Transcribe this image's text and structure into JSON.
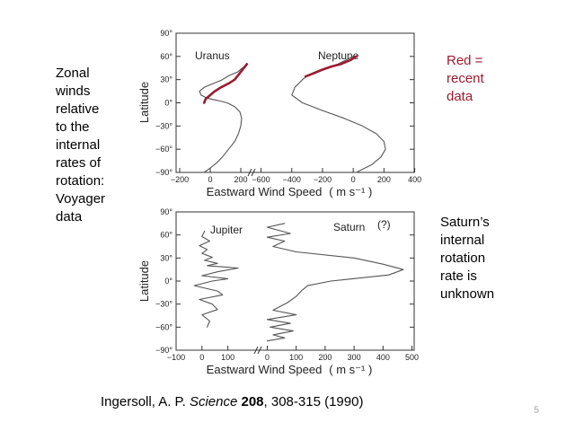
{
  "slide": {
    "left_caption": "Zonal\nwinds\nrelative\nto the\ninternal\nrates of\nrotation:\nVoyager\ndata",
    "red_note": "Red =\nrecent\ndata",
    "saturn_note": "Saturn’s\ninternal\nrotation\nrate is\nunknown",
    "citation": {
      "authors": "Ingersoll, A. P. ",
      "journal": "Science",
      "volume": "208",
      "pages": ", 308-315 (1990)"
    },
    "page_number": "5"
  },
  "colors": {
    "recent_data": "#9b1b30",
    "curve": "#555555",
    "axis": "#333333"
  },
  "chart_data": [
    {
      "type": "line",
      "xlabel": "Eastward  Wind  Speed",
      "xunit": "( m s⁻¹ )",
      "ylabel": "Latitude",
      "ylim": [
        -90,
        90
      ],
      "y_ticks": [
        "90°",
        "60°",
        "30°",
        "0°",
        "−30°",
        "−60°",
        "−90°"
      ],
      "y_tick_values": [
        90,
        60,
        30,
        0,
        -30,
        -60,
        -90
      ],
      "panels": [
        {
          "name": "Uranus",
          "x_ticks": [
            "−200",
            "0",
            "200"
          ],
          "x_tick_values": [
            -200,
            0,
            200
          ],
          "xlim": [
            -200,
            300
          ]
        },
        {
          "name": "Neptune",
          "x_ticks": [
            "−600",
            "−400",
            "−200",
            "0",
            "200",
            "400"
          ],
          "x_tick_values": [
            -600,
            -400,
            -200,
            0,
            200,
            400
          ],
          "xlim": [
            -650,
            420
          ]
        }
      ],
      "series": [
        {
          "name": "Uranus",
          "panel": 0,
          "x": [
            -40,
            -5,
            40,
            80,
            120,
            160,
            185,
            200,
            205,
            195,
            160,
            110,
            50,
            0,
            -30,
            -60,
            -70,
            -40,
            20,
            80,
            120,
            180,
            210,
            240
          ],
          "y": [
            -90,
            -85,
            -78,
            -70,
            -60,
            -50,
            -40,
            -30,
            -20,
            -12,
            -5,
            0,
            3,
            5,
            7,
            10,
            15,
            20,
            25,
            30,
            35,
            40,
            45,
            50
          ]
        },
        {
          "name": "Neptune",
          "panel": 1,
          "x": [
            20,
            120,
            180,
            210,
            200,
            150,
            60,
            -60,
            -200,
            -330,
            -400,
            -380,
            -330,
            -300,
            -250,
            -180,
            -100,
            -50,
            0
          ],
          "y": [
            -90,
            -80,
            -70,
            -60,
            -50,
            -40,
            -30,
            -20,
            -10,
            0,
            10,
            20,
            30,
            35,
            40,
            45,
            50,
            55,
            60
          ]
        }
      ],
      "recent_data": [
        {
          "name": "Uranus",
          "panel": 0,
          "x": [
            -40,
            -30,
            0,
            30,
            70,
            120,
            160,
            200,
            240
          ],
          "y": [
            0,
            5,
            10,
            15,
            20,
            25,
            30,
            40,
            50
          ]
        },
        {
          "name": "Neptune",
          "panel": 1,
          "x": [
            -310,
            -260,
            -200,
            -140,
            -80,
            -20,
            20
          ],
          "y": [
            34,
            38,
            43,
            47,
            50,
            55,
            60
          ]
        }
      ]
    },
    {
      "type": "line",
      "xlabel": "Eastward  Wind  Speed",
      "xunit": "( m s⁻¹ )",
      "ylabel": "Latitude",
      "ylim": [
        -90,
        90
      ],
      "y_ticks": [
        "90°",
        "60°",
        "30°",
        "0°",
        "−30°",
        "−60°",
        "−90°"
      ],
      "y_tick_values": [
        90,
        60,
        30,
        0,
        -30,
        -60,
        -90
      ],
      "annotation": "(?)",
      "panels": [
        {
          "name": "Jupiter",
          "x_ticks": [
            "−100",
            "0",
            "100"
          ],
          "x_tick_values": [
            -100,
            0,
            100
          ],
          "xlim": [
            -100,
            150
          ]
        },
        {
          "name": "Saturn",
          "x_ticks": [
            "0",
            "100",
            "200",
            "300",
            "400",
            "500"
          ],
          "x_tick_values": [
            0,
            100,
            200,
            300,
            400,
            500
          ],
          "xlim": [
            -20,
            520
          ]
        }
      ],
      "series": [
        {
          "name": "Jupiter",
          "panel": 0,
          "x": [
            10,
            0,
            30,
            -10,
            20,
            0,
            40,
            10,
            60,
            20,
            140,
            60,
            0,
            100,
            40,
            -30,
            60,
            80,
            -10,
            40,
            60,
            0,
            30,
            20
          ],
          "y": [
            65,
            58,
            52,
            46,
            41,
            36,
            31,
            27,
            23,
            20,
            17,
            12,
            7,
            3,
            0,
            -6,
            -13,
            -18,
            -24,
            -30,
            -37,
            -44,
            -52,
            -60
          ]
        },
        {
          "name": "Saturn",
          "panel": 1,
          "x": [
            60,
            0,
            80,
            0,
            60,
            20,
            100,
            300,
            400,
            470,
            420,
            220,
            140,
            120,
            100,
            70,
            20,
            100,
            0,
            80,
            10,
            90,
            20,
            60,
            0
          ],
          "y": [
            75,
            70,
            62,
            57,
            52,
            45,
            38,
            30,
            22,
            15,
            8,
            0,
            -6,
            -12,
            -20,
            -28,
            -38,
            -44,
            -50,
            -55,
            -60,
            -65,
            -70,
            -74,
            -78
          ]
        }
      ]
    }
  ]
}
